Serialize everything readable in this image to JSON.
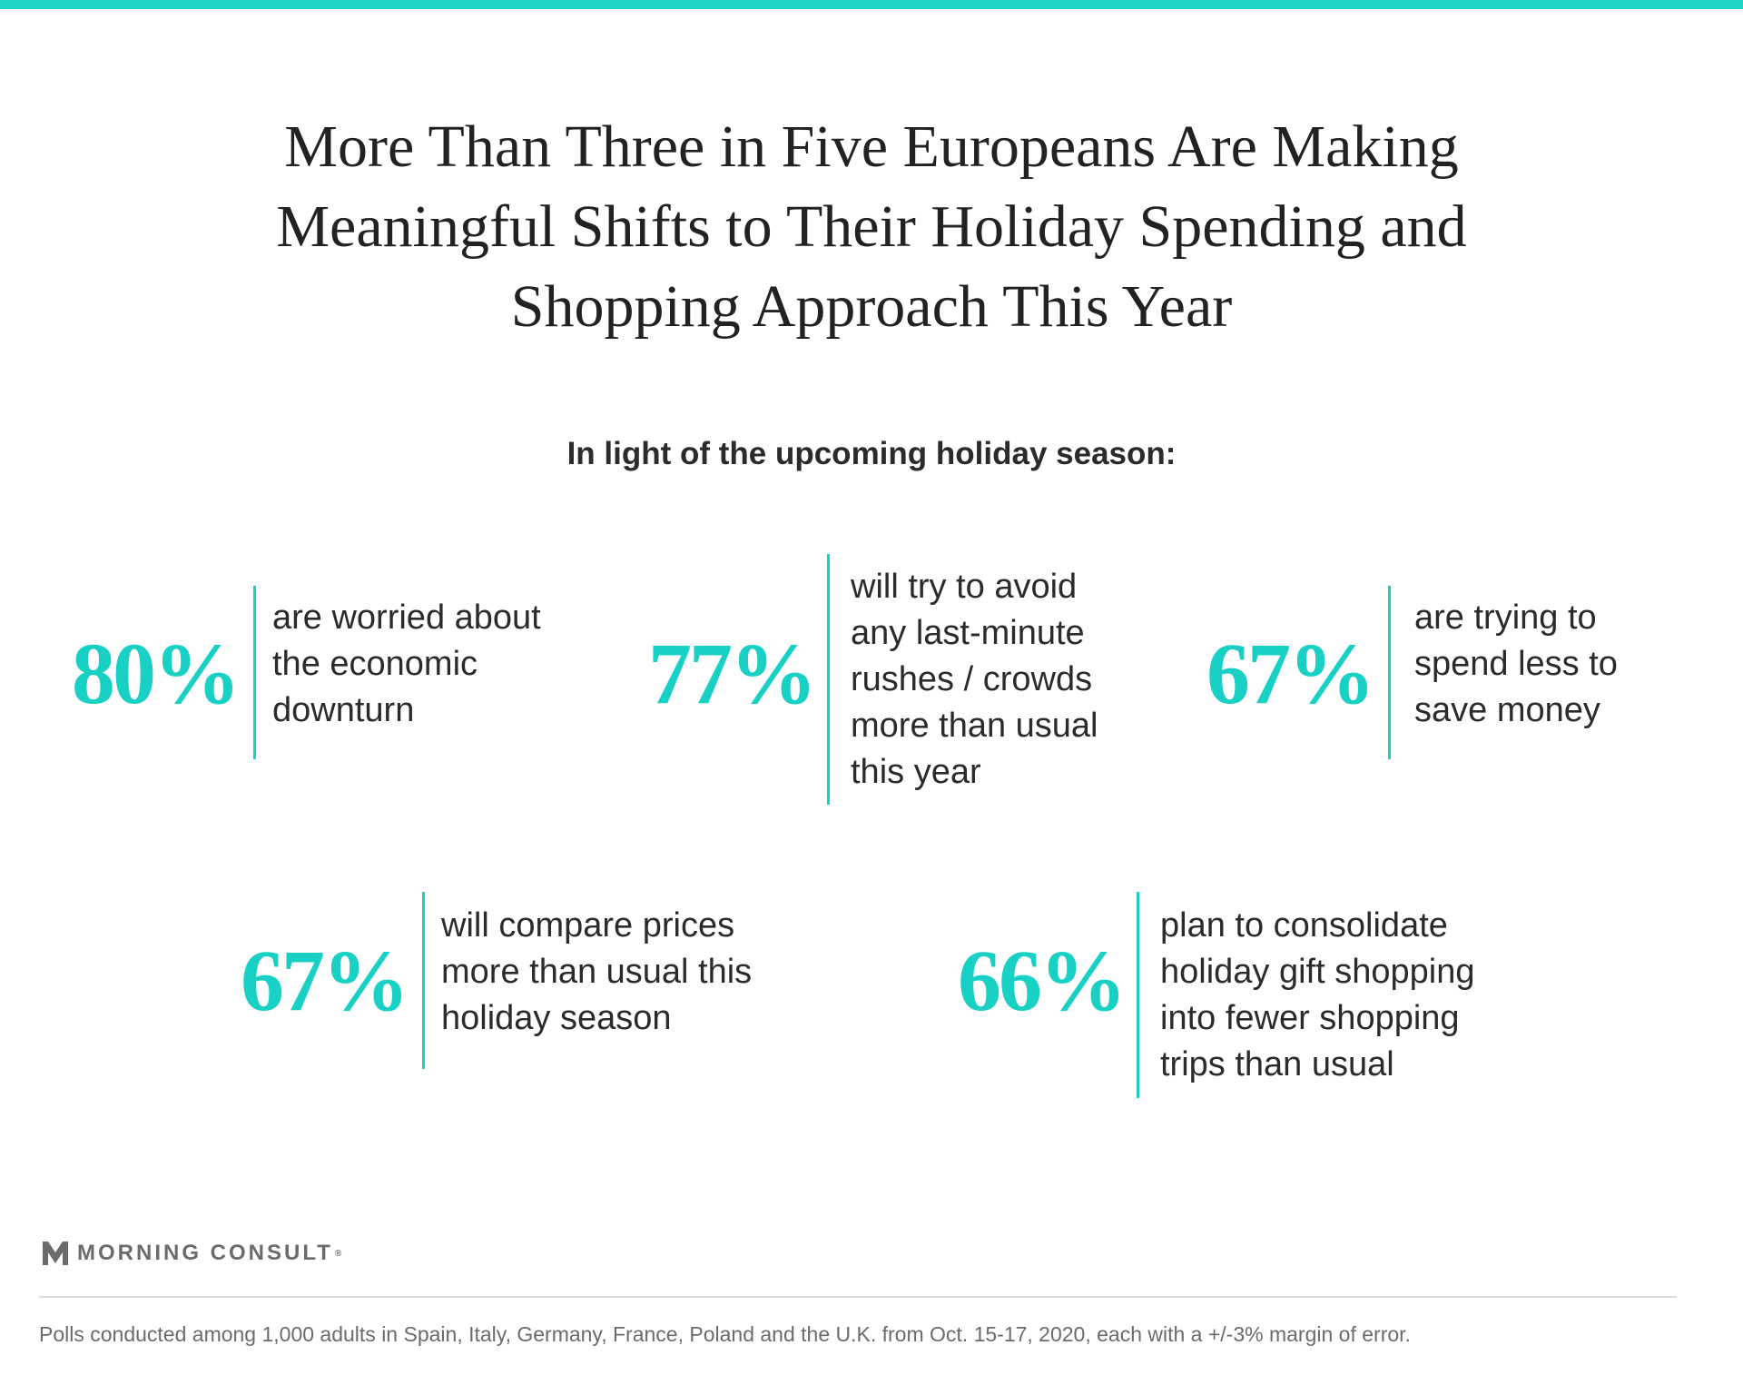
{
  "colors": {
    "accent": "#18d0c4",
    "text": "#2b2b2b",
    "muted": "#6b6b6b"
  },
  "title": {
    "lines": [
      "More Than Three in Five Europeans Are Making",
      "Meaningful Shifts to Their Holiday Spending and",
      "Shopping Approach This Year"
    ]
  },
  "subtitle": "In light of the upcoming holiday season:",
  "stats": [
    {
      "value": "80%",
      "lines": [
        "are worried about",
        "the economic",
        "downturn"
      ]
    },
    {
      "value": "77%",
      "lines": [
        "will try to avoid",
        "any last-minute",
        "rushes / crowds",
        "more than usual",
        "this year"
      ]
    },
    {
      "value": "67%",
      "lines": [
        "are trying to",
        "spend less to",
        "save money"
      ]
    },
    {
      "value": "67%",
      "lines": [
        "will compare prices",
        "more than usual this",
        "holiday season"
      ]
    },
    {
      "value": "66%",
      "lines": [
        "plan to consolidate",
        "holiday gift shopping",
        "into fewer shopping",
        "trips than usual"
      ]
    }
  ],
  "brand": {
    "name": "MORNING CONSULT",
    "mark": "®",
    "icon": "morning-consult-logo-icon"
  },
  "footnote": "Polls conducted among 1,000 adults in Spain, Italy, Germany, France, Poland and the U.K. from Oct. 15-17, 2020, each with a +/-3% margin of error."
}
